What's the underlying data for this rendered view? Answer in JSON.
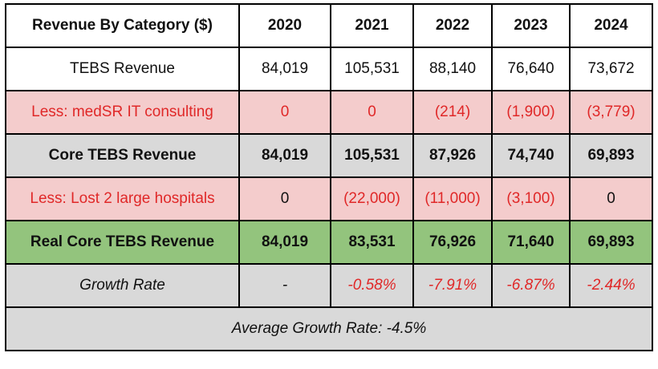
{
  "table": {
    "header": [
      "Revenue By Category ($)",
      "2020",
      "2021",
      "2022",
      "2023",
      "2024"
    ],
    "rows": [
      [
        "TEBS Revenue",
        "84,019",
        "105,531",
        "88,140",
        "76,640",
        "73,672"
      ],
      [
        "Less: medSR IT consulting",
        "0",
        "0",
        "(214)",
        "(1,900)",
        "(3,779)"
      ],
      [
        "Core TEBS Revenue",
        "84,019",
        "105,531",
        "87,926",
        "74,740",
        "69,893"
      ],
      [
        "Less: Lost 2 large hospitals",
        "0",
        "(22,000)",
        "(11,000)",
        "(3,100)",
        "0"
      ],
      [
        "Real Core TEBS Revenue",
        "84,019",
        "83,531",
        "76,926",
        "71,640",
        "69,893"
      ],
      [
        "Growth Rate",
        "-",
        "-0.58%",
        "-7.91%",
        "-6.87%",
        "-2.44%"
      ]
    ],
    "footer": "Average Growth Rate: -4.5%"
  }
}
